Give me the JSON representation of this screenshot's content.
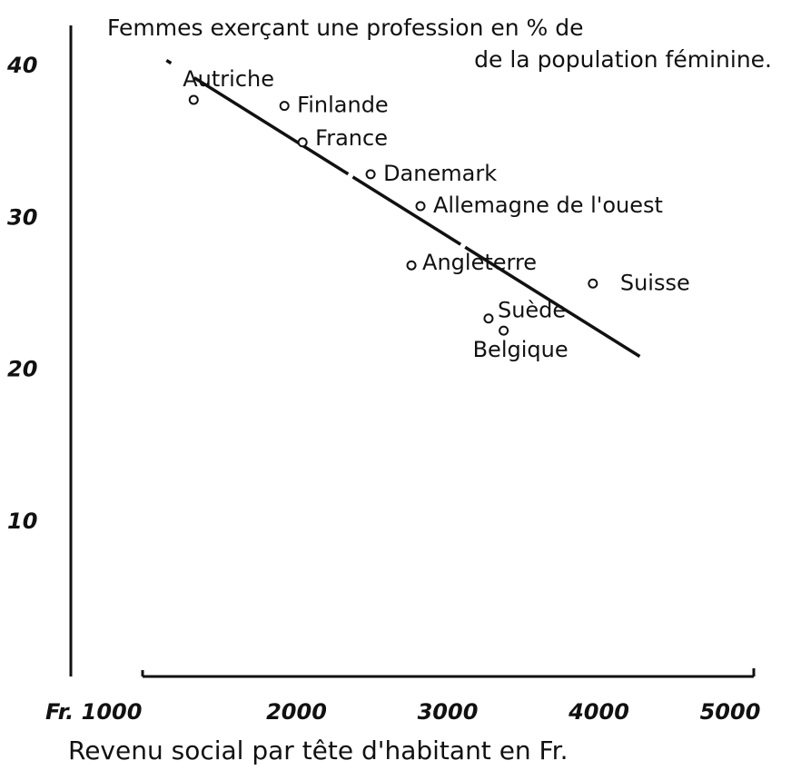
{
  "chart_data": {
    "type": "scatter",
    "title": [
      "Femmes exerçant une profession en % de",
      "de la population féminine."
    ],
    "x_label": "Revenu social par tête d'habitant en Fr.",
    "xlim": [
      1000,
      5000
    ],
    "ylim": [
      0,
      43
    ],
    "xticks": [
      {
        "value": 1000,
        "label": "Fr. 1000"
      },
      2000,
      3000,
      4000,
      5000
    ],
    "yticks": [
      10,
      20,
      30,
      40
    ],
    "color": "#111111",
    "labels": [
      "Autriche",
      "Finlande",
      "France",
      "Danemark",
      "Allemagne de l'ouest",
      "Angleterre",
      "Suisse",
      "Suède",
      "Belgique"
    ],
    "x": [
      1320,
      1920,
      2040,
      2490,
      2820,
      2760,
      3960,
      3270,
      3370
    ],
    "y": [
      37.8,
      37.4,
      35.0,
      32.9,
      30.8,
      26.9,
      25.7,
      23.4,
      22.6
    ],
    "trend_line": {
      "x": [
        1140,
        4270
      ],
      "y": [
        40.4,
        20.9
      ]
    }
  }
}
